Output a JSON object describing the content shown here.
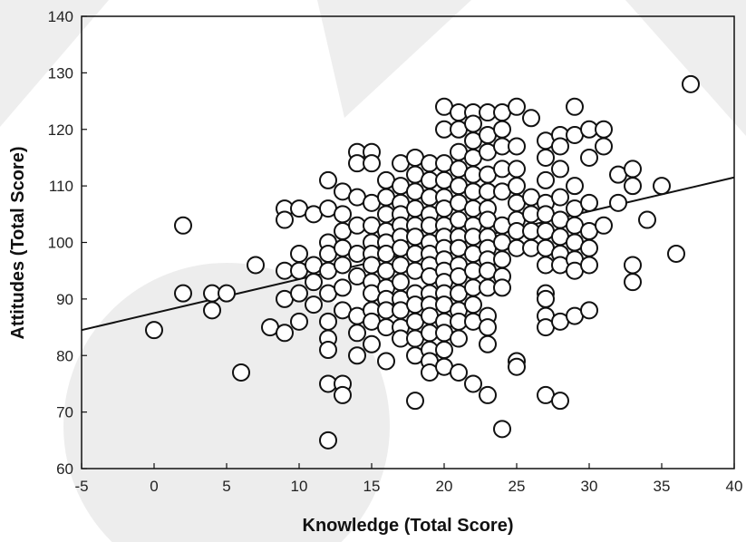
{
  "colors": {
    "point_stroke": "#111111",
    "point_fill": "#ffffff",
    "line": "#111111",
    "watermark": "#d9d9d9"
  },
  "chart_data": {
    "type": "scatter",
    "title": "",
    "xlabel": "Knowledge (Total Score)",
    "ylabel": "Attitudes (Total Score)",
    "xlim": [
      -5,
      40
    ],
    "ylim": [
      60,
      140
    ],
    "xticks": [
      -5,
      0,
      5,
      10,
      15,
      20,
      25,
      30,
      35,
      40
    ],
    "yticks": [
      60,
      70,
      80,
      90,
      100,
      110,
      120,
      130,
      140
    ],
    "grid": false,
    "trendline": {
      "x": [
        -5,
        40
      ],
      "y": [
        84.5,
        111.5
      ]
    },
    "points": [
      [
        0,
        84.5
      ],
      [
        2,
        103
      ],
      [
        2,
        91
      ],
      [
        4,
        91
      ],
      [
        4,
        88
      ],
      [
        5,
        91
      ],
      [
        6,
        77
      ],
      [
        7,
        96
      ],
      [
        8,
        85
      ],
      [
        9,
        106
      ],
      [
        9,
        104
      ],
      [
        9,
        95
      ],
      [
        9,
        90
      ],
      [
        9,
        84
      ],
      [
        10,
        106
      ],
      [
        10,
        98
      ],
      [
        10,
        95
      ],
      [
        10,
        91
      ],
      [
        10,
        86
      ],
      [
        11,
        105
      ],
      [
        11,
        96
      ],
      [
        11,
        93
      ],
      [
        11,
        89
      ],
      [
        12,
        111
      ],
      [
        12,
        106
      ],
      [
        12,
        100
      ],
      [
        12,
        98
      ],
      [
        12,
        95
      ],
      [
        12,
        91
      ],
      [
        12,
        86
      ],
      [
        12,
        83
      ],
      [
        12,
        81
      ],
      [
        12,
        75
      ],
      [
        12,
        65
      ],
      [
        13,
        109
      ],
      [
        13,
        105
      ],
      [
        13,
        102
      ],
      [
        13,
        99
      ],
      [
        13,
        96
      ],
      [
        13,
        92
      ],
      [
        13,
        88
      ],
      [
        13,
        75
      ],
      [
        13,
        73
      ],
      [
        14,
        116
      ],
      [
        14,
        114
      ],
      [
        14,
        108
      ],
      [
        14,
        103
      ],
      [
        14,
        98
      ],
      [
        14,
        94
      ],
      [
        14,
        87
      ],
      [
        14,
        84
      ],
      [
        14,
        80
      ],
      [
        15,
        116
      ],
      [
        15,
        114
      ],
      [
        15,
        107
      ],
      [
        15,
        103
      ],
      [
        15,
        100
      ],
      [
        15,
        98
      ],
      [
        15,
        96
      ],
      [
        15,
        93
      ],
      [
        15,
        91
      ],
      [
        15,
        88
      ],
      [
        15,
        86
      ],
      [
        15,
        82
      ],
      [
        16,
        111
      ],
      [
        16,
        108
      ],
      [
        16,
        105
      ],
      [
        16,
        102
      ],
      [
        16,
        100
      ],
      [
        16,
        98
      ],
      [
        16,
        95
      ],
      [
        16,
        92
      ],
      [
        16,
        90
      ],
      [
        16,
        88
      ],
      [
        16,
        85
      ],
      [
        16,
        79
      ],
      [
        17,
        114
      ],
      [
        17,
        110
      ],
      [
        17,
        107
      ],
      [
        17,
        105
      ],
      [
        17,
        103
      ],
      [
        17,
        101
      ],
      [
        17,
        99
      ],
      [
        17,
        96
      ],
      [
        17,
        93
      ],
      [
        17,
        90
      ],
      [
        17,
        88
      ],
      [
        17,
        85
      ],
      [
        17,
        83
      ],
      [
        18,
        115
      ],
      [
        18,
        112
      ],
      [
        18,
        109
      ],
      [
        18,
        106
      ],
      [
        18,
        103
      ],
      [
        18,
        101
      ],
      [
        18,
        98
      ],
      [
        18,
        95
      ],
      [
        18,
        91
      ],
      [
        18,
        89
      ],
      [
        18,
        86
      ],
      [
        18,
        83
      ],
      [
        18,
        80
      ],
      [
        18,
        72
      ],
      [
        19,
        114
      ],
      [
        19,
        111
      ],
      [
        19,
        108
      ],
      [
        19,
        105
      ],
      [
        19,
        103
      ],
      [
        19,
        100
      ],
      [
        19,
        98
      ],
      [
        19,
        96
      ],
      [
        19,
        94
      ],
      [
        19,
        91
      ],
      [
        19,
        89
      ],
      [
        19,
        87
      ],
      [
        19,
        84
      ],
      [
        19,
        81
      ],
      [
        19,
        79
      ],
      [
        19,
        77
      ],
      [
        20,
        124
      ],
      [
        20,
        120
      ],
      [
        20,
        114
      ],
      [
        20,
        111
      ],
      [
        20,
        108
      ],
      [
        20,
        106
      ],
      [
        20,
        103
      ],
      [
        20,
        101
      ],
      [
        20,
        99
      ],
      [
        20,
        97
      ],
      [
        20,
        95
      ],
      [
        20,
        93
      ],
      [
        20,
        91
      ],
      [
        20,
        89
      ],
      [
        20,
        86
      ],
      [
        20,
        84
      ],
      [
        20,
        81
      ],
      [
        20,
        78
      ],
      [
        21,
        123
      ],
      [
        21,
        120
      ],
      [
        21,
        116
      ],
      [
        21,
        113
      ],
      [
        21,
        110
      ],
      [
        21,
        107
      ],
      [
        21,
        104
      ],
      [
        21,
        101
      ],
      [
        21,
        99
      ],
      [
        21,
        96
      ],
      [
        21,
        94
      ],
      [
        21,
        91
      ],
      [
        21,
        88
      ],
      [
        21,
        86
      ],
      [
        21,
        83
      ],
      [
        21,
        77
      ],
      [
        22,
        123
      ],
      [
        22,
        121
      ],
      [
        22,
        118
      ],
      [
        22,
        115
      ],
      [
        22,
        112
      ],
      [
        22,
        109
      ],
      [
        22,
        106
      ],
      [
        22,
        103
      ],
      [
        22,
        101
      ],
      [
        22,
        98
      ],
      [
        22,
        95
      ],
      [
        22,
        92
      ],
      [
        22,
        89
      ],
      [
        22,
        86
      ],
      [
        22,
        75
      ],
      [
        23,
        123
      ],
      [
        23,
        119
      ],
      [
        23,
        116
      ],
      [
        23,
        112
      ],
      [
        23,
        109
      ],
      [
        23,
        106
      ],
      [
        23,
        104
      ],
      [
        23,
        101
      ],
      [
        23,
        99
      ],
      [
        23,
        97
      ],
      [
        23,
        95
      ],
      [
        23,
        92
      ],
      [
        23,
        87
      ],
      [
        23,
        85
      ],
      [
        23,
        82
      ],
      [
        23,
        73
      ],
      [
        24,
        123
      ],
      [
        24,
        120
      ],
      [
        24,
        117
      ],
      [
        24,
        113
      ],
      [
        24,
        109
      ],
      [
        24,
        103
      ],
      [
        24,
        100
      ],
      [
        24,
        97
      ],
      [
        24,
        94
      ],
      [
        24,
        92
      ],
      [
        24,
        67
      ],
      [
        25,
        124
      ],
      [
        25,
        117
      ],
      [
        25,
        113
      ],
      [
        25,
        110
      ],
      [
        25,
        107
      ],
      [
        25,
        104
      ],
      [
        25,
        102
      ],
      [
        25,
        99
      ],
      [
        25,
        79
      ],
      [
        25,
        78
      ],
      [
        26,
        122
      ],
      [
        26,
        108
      ],
      [
        26,
        105
      ],
      [
        26,
        102
      ],
      [
        26,
        99
      ],
      [
        27,
        118
      ],
      [
        27,
        115
      ],
      [
        27,
        111
      ],
      [
        27,
        107
      ],
      [
        27,
        105
      ],
      [
        27,
        102
      ],
      [
        27,
        99
      ],
      [
        27,
        96
      ],
      [
        27,
        91
      ],
      [
        27,
        90
      ],
      [
        27,
        87
      ],
      [
        27,
        85
      ],
      [
        27,
        73
      ],
      [
        28,
        119
      ],
      [
        28,
        117
      ],
      [
        28,
        113
      ],
      [
        28,
        108
      ],
      [
        28,
        104
      ],
      [
        28,
        101
      ],
      [
        28,
        98
      ],
      [
        28,
        96
      ],
      [
        28,
        86
      ],
      [
        28,
        72
      ],
      [
        29,
        124
      ],
      [
        29,
        119
      ],
      [
        29,
        110
      ],
      [
        29,
        106
      ],
      [
        29,
        103
      ],
      [
        29,
        100
      ],
      [
        29,
        97
      ],
      [
        29,
        95
      ],
      [
        29,
        87
      ],
      [
        30,
        120
      ],
      [
        30,
        115
      ],
      [
        30,
        107
      ],
      [
        30,
        102
      ],
      [
        30,
        99
      ],
      [
        30,
        96
      ],
      [
        30,
        88
      ],
      [
        31,
        120
      ],
      [
        31,
        117
      ],
      [
        31,
        103
      ],
      [
        32,
        112
      ],
      [
        32,
        107
      ],
      [
        33,
        113
      ],
      [
        33,
        110
      ],
      [
        33,
        96
      ],
      [
        33,
        93
      ],
      [
        34,
        104
      ],
      [
        35,
        110
      ],
      [
        36,
        98
      ],
      [
        37,
        128
      ]
    ]
  }
}
